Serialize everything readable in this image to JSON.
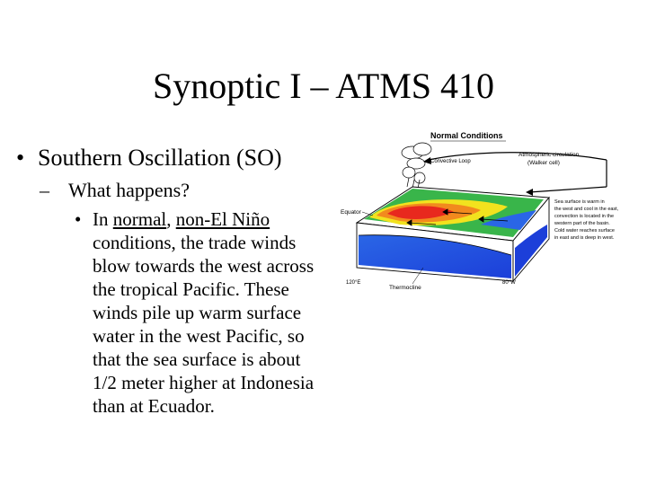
{
  "slide": {
    "title": "Synoptic I – ATMS 410",
    "bullet1": "Southern Oscillation (SO)",
    "bullet2": "What happens?",
    "bullet3": {
      "prefix": "In ",
      "normal": "normal",
      "sep": ", ",
      "non_el_nino": "non-El Niño",
      "rest": " conditions, the trade winds blow towards the west across the tropical Pacific. These winds pile up warm surface water in the west Pacific, so that the sea surface is about 1/2 meter higher at Indonesia than at Ecuador."
    }
  },
  "figure": {
    "title": "Normal Conditions",
    "convective_loop": "Convective Loop",
    "atmospheric_circulation": "Atmospheric circulation",
    "walker_cell": "(Walker cell)",
    "equator": "Equator",
    "thermocline": "Thermocline",
    "lon_120e": "120°E",
    "lon_80w": "80°W",
    "note_lines": [
      "Sea surface is warm in",
      "the west and cool in the east,",
      "convection is located in the",
      "western part of the basin.",
      "Cold water reaches surface",
      "in east and is deep in west."
    ],
    "colors": {
      "warm_pool": "#e8281e",
      "warm_ring": "#f28a1e",
      "mid_band": "#f2e21e",
      "cool_green": "#39b54a",
      "cold_blue": "#1c3fd9",
      "deep_blue": "#2a66e6"
    }
  }
}
